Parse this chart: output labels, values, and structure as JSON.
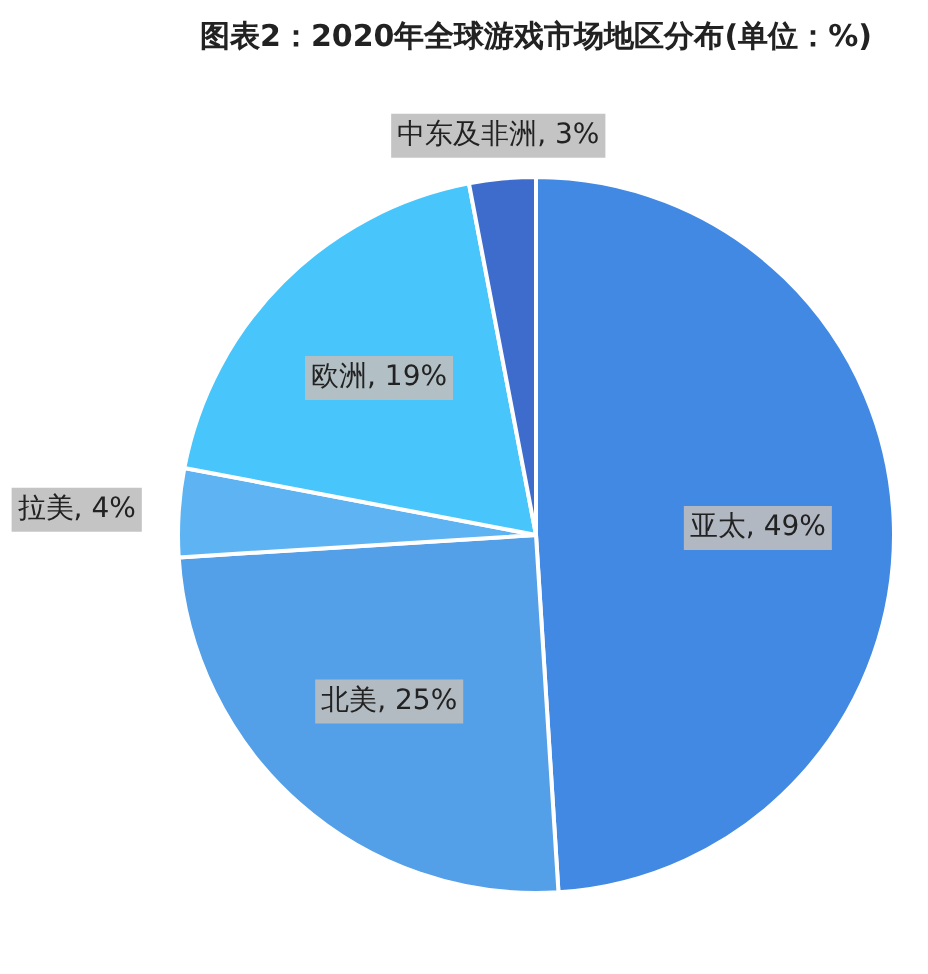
{
  "chart_data": {
    "type": "pie",
    "title": "图表2：2020年全球游戏市场地区分布(单位：%)",
    "categories": [
      "亚太",
      "北美",
      "拉美",
      "欧洲",
      "中东及非洲"
    ],
    "values": [
      49,
      25,
      4,
      19,
      3
    ],
    "colors": [
      "#4289e3",
      "#539fe8",
      "#5eb4f3",
      "#48c6fb",
      "#3e6ccd"
    ],
    "value_labels": [
      "49%",
      "25%",
      "4%",
      "19%",
      "3%"
    ],
    "legend": false
  }
}
